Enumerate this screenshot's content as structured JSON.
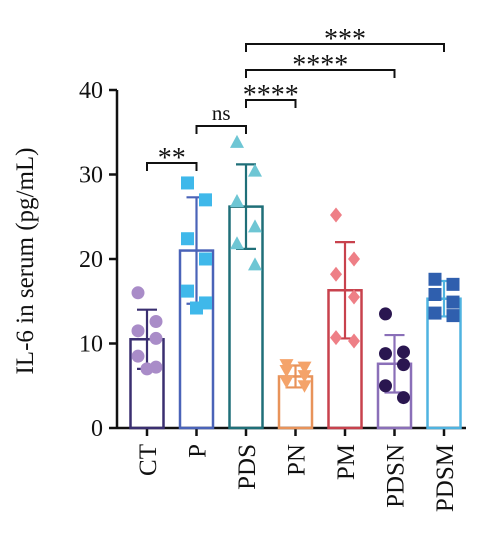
{
  "chart_data": {
    "type": "bar",
    "title": "",
    "ylabel": "IL-6 in serum (pg/mL)",
    "xlabel": "",
    "ylim": [
      0,
      40
    ],
    "yticks": [
      0,
      10,
      20,
      30,
      40
    ],
    "grid": false,
    "categories": [
      "CT",
      "P",
      "PDS",
      "PN",
      "PM",
      "PDSN",
      "PDSM"
    ],
    "values": [
      10.5,
      21.0,
      26.2,
      6.1,
      16.3,
      7.6,
      15.3
    ],
    "errors": [
      3.5,
      6.3,
      5.0,
      1.3,
      5.7,
      3.4,
      2.1
    ],
    "colors": [
      "#3a2f70",
      "#4a63b8",
      "#1f6f78",
      "#e8935a",
      "#c8424d",
      "#8a6fb8",
      "#4fb3e0"
    ],
    "marker_colors": [
      "#a98cc8",
      "#3fb8ea",
      "#6ec6d4",
      "#f4a36a",
      "#ee7f86",
      "#2a1650",
      "#2f5fae"
    ],
    "marker_shapes": [
      "circle",
      "square",
      "triangle",
      "triangle-down",
      "diamond",
      "circle",
      "square"
    ],
    "points": [
      [
        16.0,
        12.6,
        11.5,
        10.6,
        8.5,
        7.2,
        7.0
      ],
      [
        29.0,
        27.0,
        22.4,
        20.0,
        16.2,
        14.8,
        14.2
      ],
      [
        33.8,
        30.4,
        26.8,
        23.8,
        21.8,
        19.3
      ],
      [
        7.5,
        7.2,
        6.8,
        6.2,
        5.5,
        5.0
      ],
      [
        25.2,
        20.0,
        18.2,
        15.5,
        10.7,
        10.3
      ],
      [
        13.5,
        9.0,
        8.8,
        7.5,
        5.0,
        3.6
      ],
      [
        17.6,
        17.0,
        15.8,
        14.9,
        13.6,
        13.3
      ]
    ],
    "significance": [
      {
        "from": 0,
        "to": 1,
        "label": "**"
      },
      {
        "from": 1,
        "to": 2,
        "label": "ns"
      },
      {
        "from": 2,
        "to": 3,
        "label": "****"
      },
      {
        "from": 2,
        "to": 5,
        "label": "****"
      },
      {
        "from": 2,
        "to": 6,
        "label": "***"
      }
    ]
  }
}
